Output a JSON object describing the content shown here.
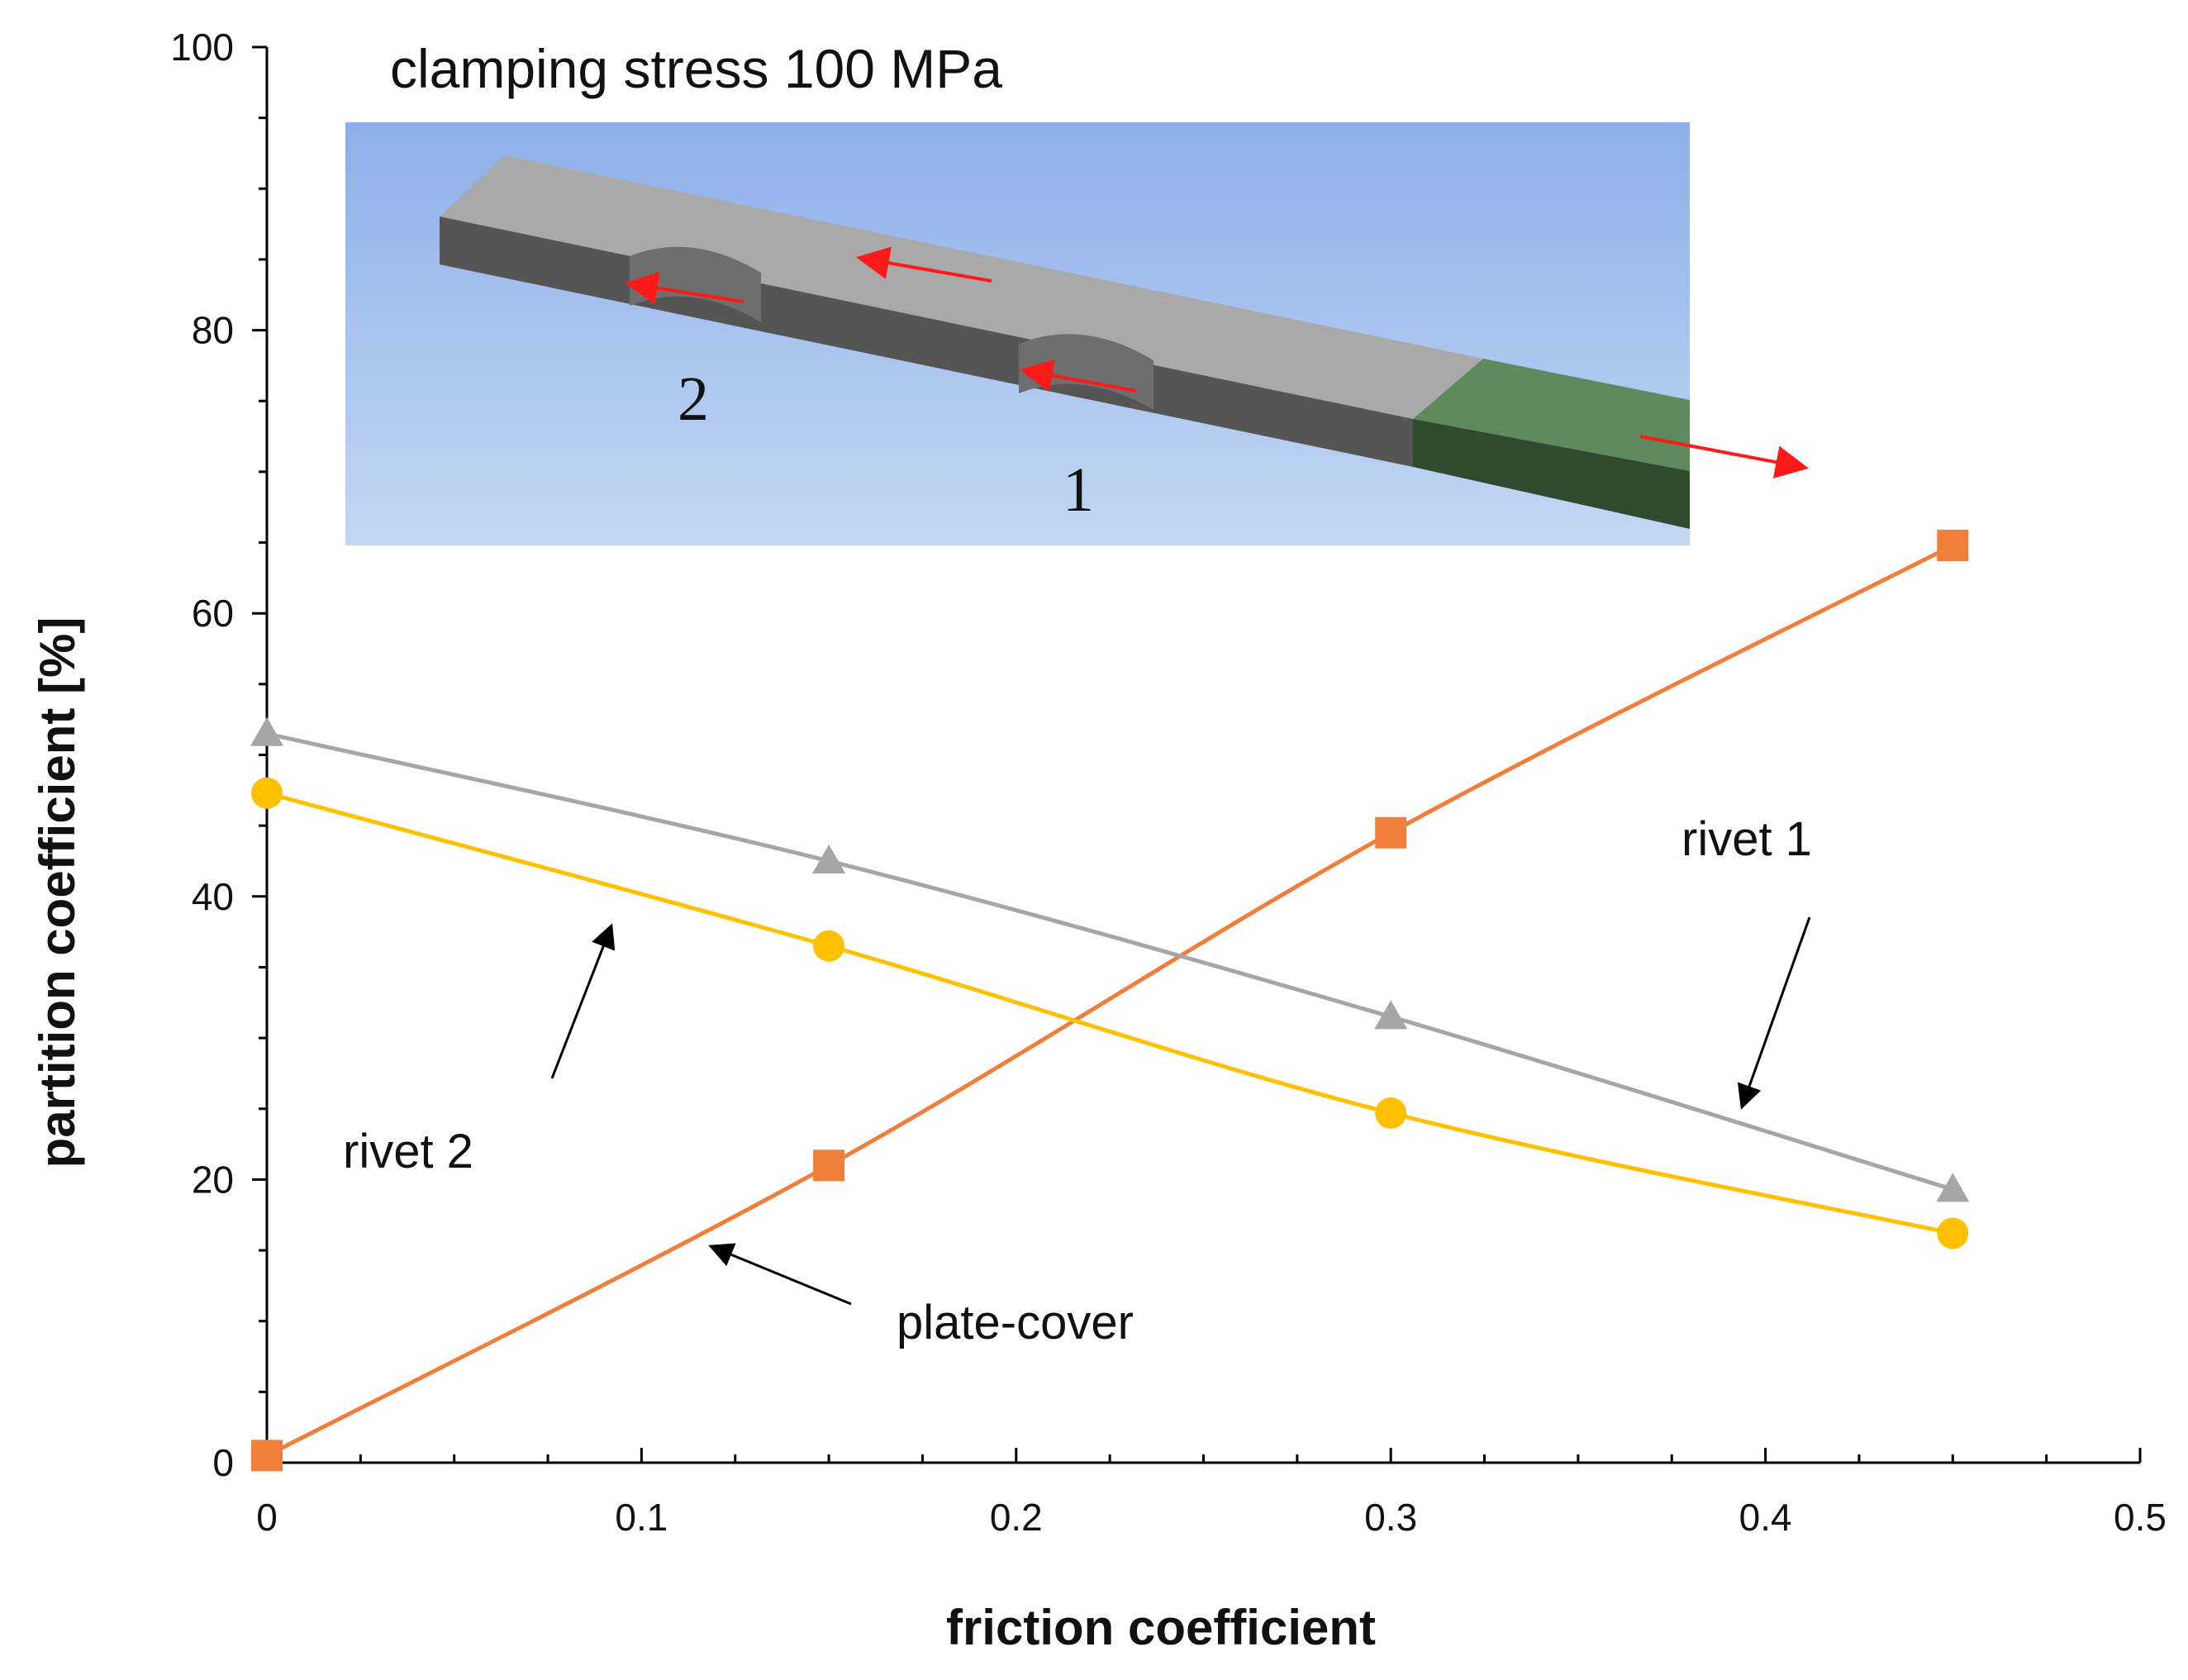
{
  "chart_data": {
    "type": "line",
    "xlabel": "friction coefficient",
    "ylabel": "partition coefficient  [%]",
    "xlim": [
      0,
      0.5
    ],
    "ylim": [
      0,
      100
    ],
    "x_ticks": [
      "0",
      "0.1",
      "0.2",
      "0.3",
      "0.4",
      "0.5"
    ],
    "y_ticks": [
      "0",
      "20",
      "40",
      "60",
      "80",
      "100"
    ],
    "x": [
      0,
      0.15,
      0.3,
      0.45
    ],
    "grid": false,
    "series": [
      {
        "name": "plate-cover",
        "values": [
          0.5,
          21,
          44.5,
          64.8
        ],
        "color": "#f07f3c",
        "marker": "square"
      },
      {
        "name": "rivet 1",
        "values": [
          51.5,
          42.5,
          31.5,
          19.3
        ],
        "color": "#a6a6a6",
        "marker": "triangle"
      },
      {
        "name": "rivet 2",
        "values": [
          47.3,
          36.5,
          24.7,
          16.2
        ],
        "color": "#ffc000",
        "marker": "circle"
      }
    ],
    "annotations": {
      "rivet1": "rivet 1",
      "rivet2": "rivet 2",
      "plate_cover": "plate-cover"
    },
    "inset": {
      "title": "clamping stress 100 MPa",
      "label_1": "1",
      "label_2": "2"
    }
  }
}
